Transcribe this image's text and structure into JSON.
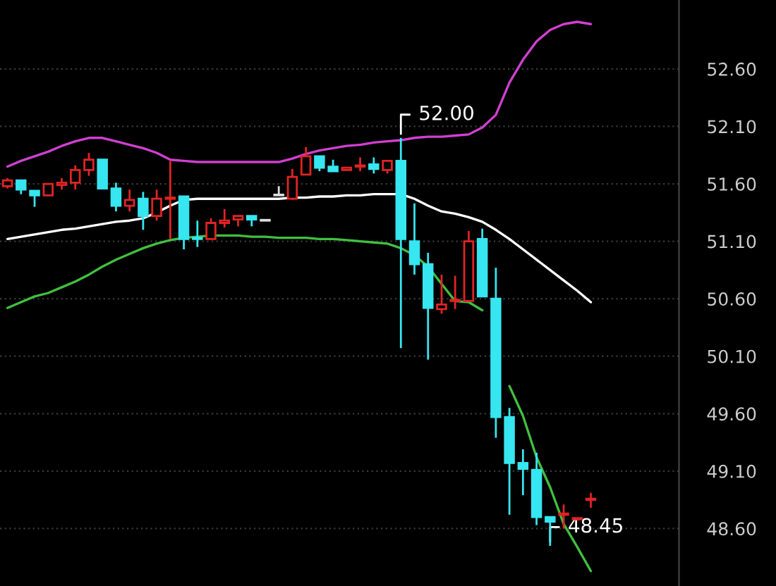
{
  "chart_data": {
    "type": "candlestick",
    "categories": [
      null,
      null,
      null,
      null,
      null,
      null,
      null,
      null,
      null,
      null,
      null,
      null,
      null,
      null,
      null,
      null,
      null,
      null,
      null,
      null,
      null,
      null,
      null,
      null,
      null,
      null,
      null,
      null,
      null,
      null,
      null,
      null,
      null,
      null,
      null,
      null,
      null,
      null,
      null,
      null,
      null,
      null,
      null,
      null
    ],
    "ohlc": [
      [
        51.58,
        51.65,
        51.56,
        51.63
      ],
      [
        51.63,
        51.63,
        51.51,
        51.55
      ],
      [
        51.54,
        51.54,
        51.4,
        51.5
      ],
      [
        51.5,
        51.6,
        51.5,
        51.6
      ],
      [
        51.59,
        51.65,
        51.55,
        51.61
      ],
      [
        51.61,
        51.76,
        51.55,
        51.72
      ],
      [
        51.72,
        51.87,
        51.67,
        51.81
      ],
      [
        51.81,
        51.81,
        51.56,
        51.56
      ],
      [
        51.56,
        51.61,
        51.36,
        51.41
      ],
      [
        51.41,
        51.55,
        51.36,
        51.46
      ],
      [
        51.47,
        51.53,
        51.2,
        51.32
      ],
      [
        51.32,
        51.55,
        51.28,
        51.47
      ],
      [
        51.47,
        51.8,
        51.12,
        51.48
      ],
      [
        51.49,
        51.49,
        51.03,
        51.12
      ],
      [
        51.13,
        51.28,
        51.05,
        51.12
      ],
      [
        51.12,
        51.3,
        51.12,
        51.26
      ],
      [
        51.26,
        51.38,
        51.22,
        51.28
      ],
      [
        51.29,
        51.32,
        51.23,
        51.32
      ],
      [
        51.32,
        51.32,
        51.23,
        51.29
      ],
      [
        51.28,
        51.28,
        51.28,
        51.28
      ],
      [
        51.5,
        51.58,
        51.5,
        51.5
      ],
      [
        51.47,
        51.73,
        51.46,
        51.66
      ],
      [
        51.68,
        51.92,
        51.68,
        51.84
      ],
      [
        51.84,
        51.84,
        51.71,
        51.74
      ],
      [
        51.75,
        51.81,
        51.71,
        51.71
      ],
      [
        51.72,
        51.74,
        51.72,
        51.74
      ],
      [
        51.75,
        51.83,
        51.71,
        51.76
      ],
      [
        51.77,
        51.83,
        51.69,
        51.73
      ],
      [
        51.72,
        51.8,
        51.69,
        51.8
      ],
      [
        51.8,
        52.0,
        50.17,
        51.12
      ],
      [
        51.1,
        51.43,
        50.81,
        50.9
      ],
      [
        50.9,
        51.0,
        50.07,
        50.52
      ],
      [
        50.51,
        50.81,
        50.47,
        50.55
      ],
      [
        50.58,
        50.8,
        50.51,
        50.59
      ],
      [
        50.58,
        51.19,
        50.58,
        51.1
      ],
      [
        51.12,
        51.21,
        50.62,
        50.62
      ],
      [
        50.6,
        50.87,
        49.39,
        49.57
      ],
      [
        49.57,
        49.65,
        48.72,
        49.17
      ],
      [
        49.17,
        49.29,
        48.89,
        49.12
      ],
      [
        49.11,
        49.26,
        48.63,
        48.7
      ],
      [
        48.7,
        48.7,
        48.45,
        48.66
      ],
      [
        48.72,
        48.81,
        48.6,
        48.73
      ],
      [
        48.68,
        48.69,
        48.68,
        48.69
      ],
      [
        48.85,
        48.91,
        48.78,
        48.86
      ]
    ],
    "series": [
      {
        "type": "line",
        "color": "#d040d0",
        "values": [
          51.75,
          51.8,
          51.84,
          51.88,
          51.93,
          51.97,
          52.0,
          52.0,
          51.97,
          51.94,
          51.91,
          51.87,
          51.81,
          51.8,
          51.79,
          51.79,
          51.79,
          51.79,
          51.79,
          51.79,
          51.79,
          51.82,
          51.86,
          51.89,
          51.91,
          51.93,
          51.94,
          51.96,
          51.97,
          51.98,
          52.0,
          52.01,
          52.01,
          52.02,
          52.03,
          52.09,
          52.2,
          52.48,
          52.68,
          52.84,
          52.94,
          52.99,
          53.01,
          52.99
        ]
      },
      {
        "type": "line",
        "color": "#ffffff",
        "values": [
          51.12,
          51.14,
          51.16,
          51.18,
          51.2,
          51.21,
          51.23,
          51.25,
          51.27,
          51.28,
          51.3,
          51.35,
          51.41,
          51.46,
          51.47,
          51.47,
          51.47,
          51.47,
          51.47,
          51.47,
          51.47,
          51.48,
          51.48,
          51.49,
          51.49,
          51.5,
          51.5,
          51.51,
          51.51,
          51.51,
          51.47,
          51.41,
          51.36,
          51.34,
          51.31,
          51.27,
          51.2,
          51.12,
          51.03,
          50.94,
          50.85,
          50.76,
          50.67,
          50.57
        ]
      },
      {
        "type": "line",
        "color": "#40c040",
        "values": [
          50.52,
          50.57,
          50.62,
          50.65,
          50.7,
          50.75,
          50.81,
          50.88,
          50.94,
          50.99,
          51.04,
          51.08,
          51.11,
          51.13,
          51.14,
          51.15,
          51.15,
          51.15,
          51.14,
          51.14,
          51.13,
          51.13,
          51.13,
          51.12,
          51.12,
          51.11,
          51.1,
          51.09,
          51.08,
          51.04,
          50.98,
          50.88,
          50.73,
          50.58,
          50.57,
          50.5,
          null,
          49.84,
          49.58,
          49.22,
          48.96,
          48.64,
          48.44,
          48.23
        ]
      }
    ],
    "ylim": [
      48.1,
      53.2
    ],
    "yticks": [
      {
        "value": 48.6,
        "label": "48.60"
      },
      {
        "value": 49.1,
        "label": "49.10"
      },
      {
        "value": 49.6,
        "label": "49.60"
      },
      {
        "value": 50.1,
        "label": "50.10"
      },
      {
        "value": 50.6,
        "label": "50.60"
      },
      {
        "value": 51.1,
        "label": "51.10"
      },
      {
        "value": 51.6,
        "label": "51.60"
      },
      {
        "value": 52.1,
        "label": "52.10"
      },
      {
        "value": 52.6,
        "label": "52.60"
      }
    ],
    "annotations": [
      "52.00",
      "48.45"
    ],
    "grid": "y",
    "tick_labels": "y"
  }
}
